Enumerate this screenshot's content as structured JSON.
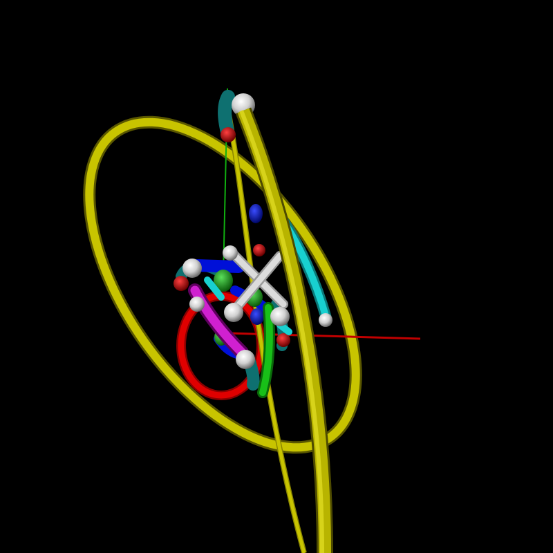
{
  "scene": {
    "background": "#000000",
    "colors": {
      "yellow": "#c8c400",
      "yellow_dark": "#8a8600",
      "red": "#d40000",
      "blue": "#0010d8",
      "green": "#10b010",
      "cyan": "#10c8c8",
      "teal": "#0e7070",
      "magenta": "#c010c0",
      "white": "#d8d8d8"
    },
    "objects": [
      "yellow-ring-large",
      "yellow-arc-vertical",
      "red-ring",
      "cyan-arc",
      "red-axis-line",
      "green-axis-line",
      "molecular-bundle"
    ]
  }
}
